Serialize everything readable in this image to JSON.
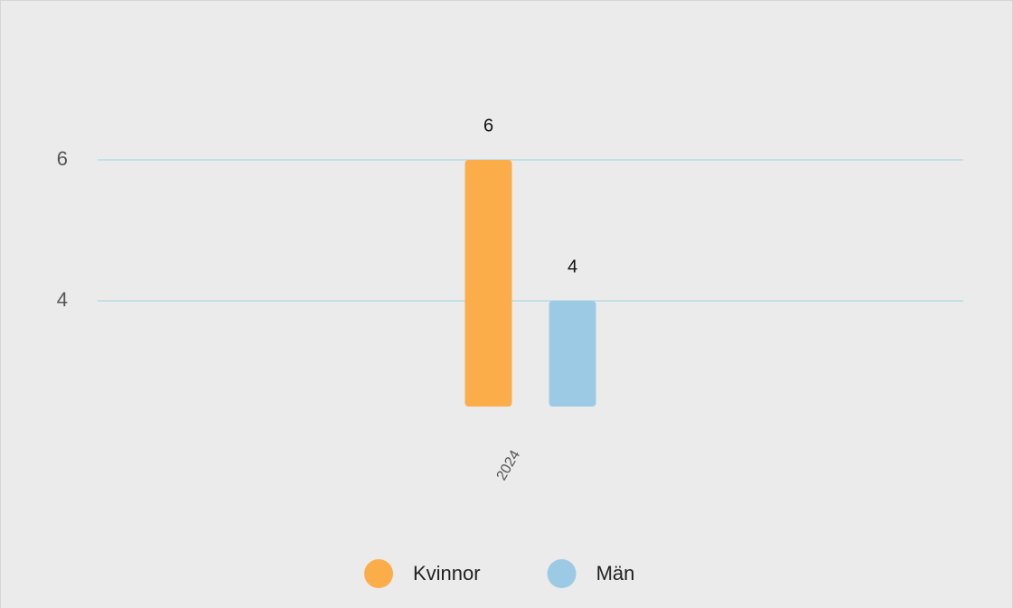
{
  "chart_data": {
    "type": "bar",
    "categories": [
      "2024"
    ],
    "series": [
      {
        "name": "Kvinnor",
        "color": "#fbad4a",
        "values": [
          6
        ]
      },
      {
        "name": "Män",
        "color": "#9ccae4",
        "values": [
          4
        ]
      }
    ],
    "ylim": [
      2.5,
      6.5
    ],
    "yticks": [
      4,
      6
    ],
    "grid": true,
    "legend": "bottom"
  }
}
